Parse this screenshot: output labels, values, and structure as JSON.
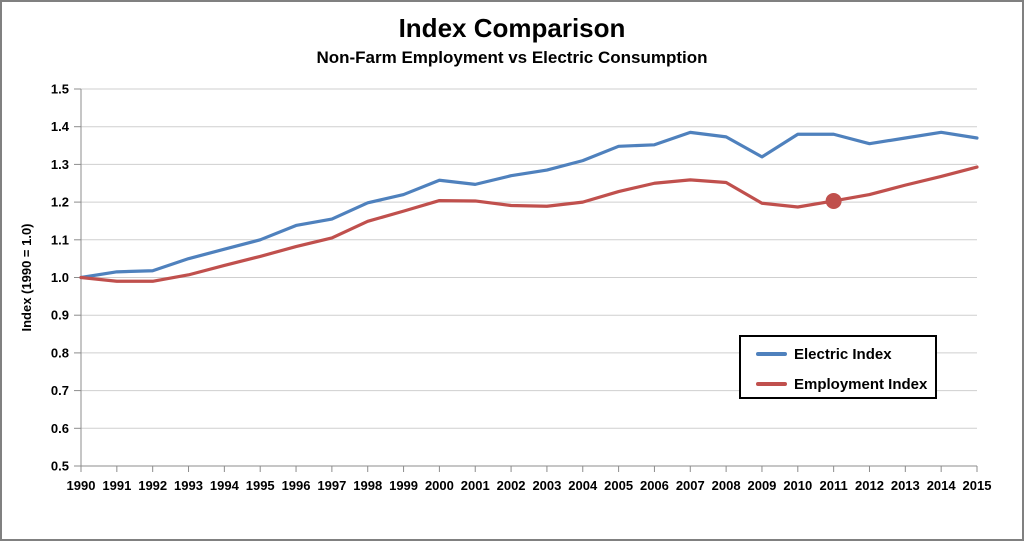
{
  "chart_data": {
    "type": "line",
    "title": "Index Comparison",
    "subtitle": "Non-Farm Employment vs Electric Consumption",
    "ylabel": "Index (1990 = 1.0)",
    "xlabel": "",
    "ylim": [
      0.5,
      1.5
    ],
    "ytick_step": 0.1,
    "grid": "horizontal",
    "legend_position": "middle-right-boxed",
    "x": [
      1990,
      1991,
      1992,
      1993,
      1994,
      1995,
      1996,
      1997,
      1998,
      1999,
      2000,
      2001,
      2002,
      2003,
      2004,
      2005,
      2006,
      2007,
      2008,
      2009,
      2010,
      2011,
      2012,
      2013,
      2014,
      2015
    ],
    "series": [
      {
        "name": "Electric Index",
        "color": "#4F81BD",
        "values": [
          1.0,
          1.015,
          1.018,
          1.05,
          1.075,
          1.1,
          1.138,
          1.155,
          1.198,
          1.22,
          1.258,
          1.247,
          1.27,
          1.285,
          1.31,
          1.348,
          1.352,
          1.385,
          1.373,
          1.32,
          1.38,
          1.38,
          1.355,
          1.37,
          1.385,
          1.37
        ]
      },
      {
        "name": "Employment Index",
        "color": "#C0504D",
        "values": [
          1.0,
          0.99,
          0.99,
          1.007,
          1.032,
          1.056,
          1.082,
          1.105,
          1.149,
          1.176,
          1.204,
          1.203,
          1.191,
          1.189,
          1.2,
          1.228,
          1.25,
          1.259,
          1.252,
          1.197,
          1.187,
          1.203,
          1.22,
          1.245,
          1.268,
          1.293
        ],
        "marker_at": 2011
      }
    ]
  },
  "style": {
    "gridline_color": "#CFCFCF",
    "axis_color": "#8C8C8C",
    "frame_color": "#808080",
    "text_color": "#000000",
    "background": "#FFFFFF"
  }
}
